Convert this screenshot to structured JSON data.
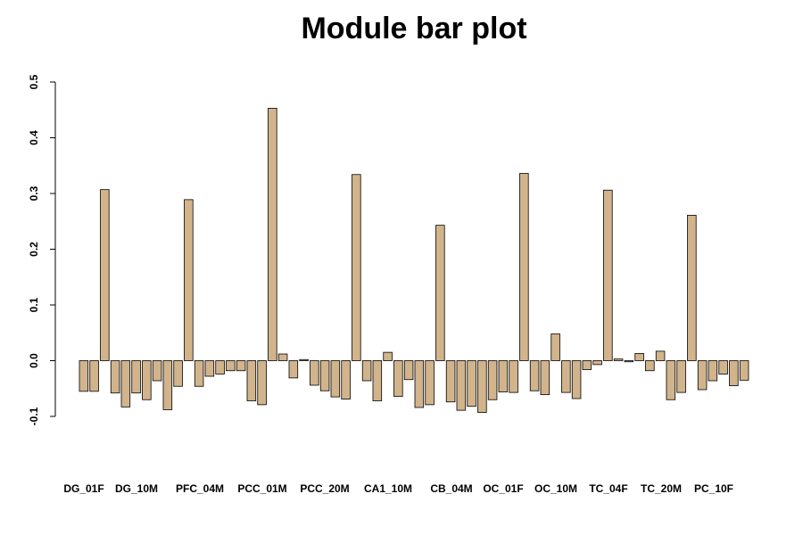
{
  "chart_data": {
    "type": "bar",
    "title": "Module bar plot",
    "xlabel": "",
    "ylabel": "",
    "ylim": [
      -0.1,
      0.5
    ],
    "yticks": [
      "-0.1",
      "0.0",
      "0.1",
      "0.2",
      "0.3",
      "0.4",
      "0.5"
    ],
    "bar_color": "#d2b48c",
    "grid": false,
    "legend": "none",
    "category_labels": [
      "DG_01F",
      "DG_10M",
      "PFC_04M",
      "PCC_01M",
      "PCC_20M",
      "CA1_10M",
      "CB_04M",
      "OC_01F",
      "OC_10M",
      "TC_04F",
      "TC_20M",
      "PC_10F"
    ],
    "values": [
      -0.055,
      -0.055,
      0.307,
      -0.058,
      -0.083,
      -0.058,
      -0.07,
      -0.036,
      -0.088,
      -0.046,
      0.289,
      -0.046,
      -0.028,
      -0.024,
      -0.018,
      -0.018,
      -0.072,
      -0.079,
      0.453,
      0.012,
      -0.031,
      0.002,
      -0.044,
      -0.054,
      -0.065,
      -0.069,
      0.334,
      -0.036,
      -0.072,
      0.015,
      -0.064,
      -0.034,
      -0.084,
      -0.079,
      0.243,
      -0.074,
      -0.089,
      -0.082,
      -0.093,
      -0.07,
      -0.056,
      -0.057,
      0.336,
      -0.054,
      -0.061,
      0.048,
      -0.057,
      -0.068,
      -0.016,
      -0.007,
      0.306,
      0.003,
      -0.002,
      0.013,
      -0.018,
      0.017,
      -0.07,
      -0.057,
      0.261,
      -0.052,
      -0.036,
      -0.024,
      -0.045,
      -0.035
    ]
  }
}
